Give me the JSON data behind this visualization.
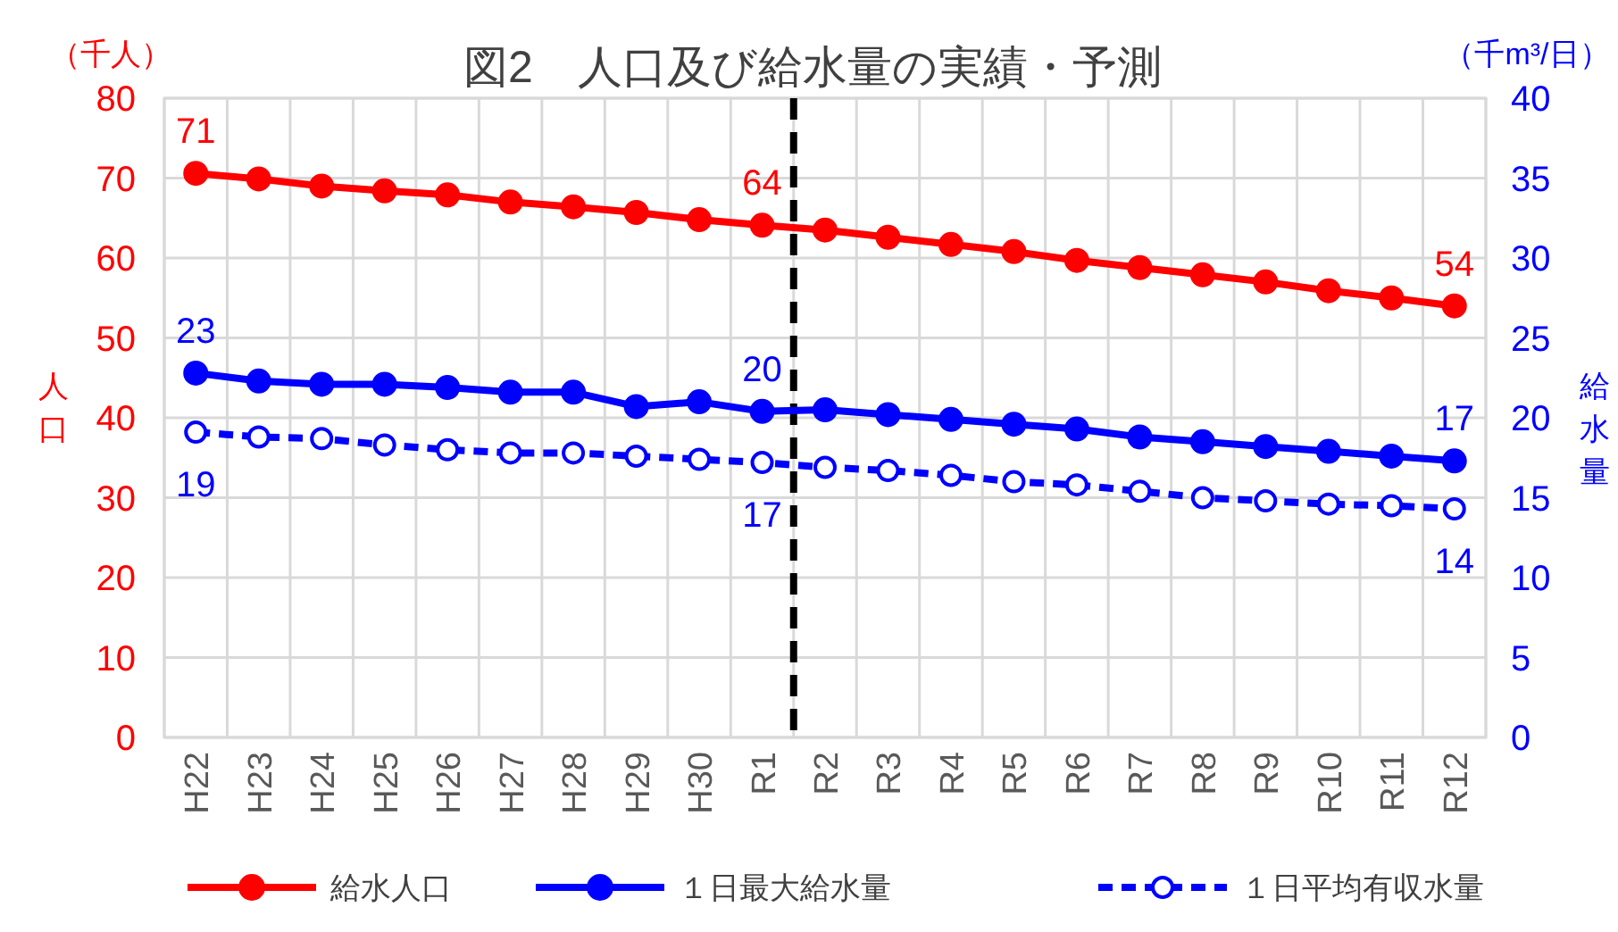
{
  "chart_data": {
    "type": "line",
    "title": "図2　人口及び給水量の実績・予測",
    "categories": [
      "H22",
      "H23",
      "H24",
      "H25",
      "H26",
      "H27",
      "H28",
      "H29",
      "H30",
      "R1",
      "R2",
      "R3",
      "R4",
      "R5",
      "R6",
      "R7",
      "R8",
      "R9",
      "R10",
      "R11",
      "R12"
    ],
    "ylabel": "人口",
    "y2label": "給水量",
    "annotations": [
      "（千人）",
      "（千m³/日）"
    ],
    "ylim": [
      0,
      80
    ],
    "yticks": [
      0,
      10,
      20,
      30,
      40,
      50,
      60,
      70,
      80
    ],
    "y2lim": [
      0,
      40
    ],
    "y2ticks": [
      0,
      5,
      10,
      15,
      20,
      25,
      30,
      35,
      40
    ],
    "grid": true,
    "legend": "bottom",
    "marker": "circle",
    "ref_lines": [
      {
        "axis": "x",
        "value": "R1",
        "color": "#000000",
        "line_style": "dashed"
      }
    ],
    "series": [
      {
        "name": "給水人口",
        "color": "#ff0000",
        "line_style": "solid",
        "values": [
          70.6,
          69.9,
          69.0,
          68.4,
          67.9,
          67.0,
          66.4,
          65.7,
          64.8,
          64.1,
          63.5,
          62.6,
          61.7,
          60.8,
          59.7,
          58.8,
          57.9,
          57.0,
          55.9,
          55.0,
          54.0
        ],
        "value_labels": [
          "71",
          null,
          null,
          null,
          null,
          null,
          null,
          null,
          null,
          "64",
          null,
          null,
          null,
          null,
          null,
          null,
          null,
          null,
          null,
          null,
          "54"
        ]
      },
      {
        "name": "１日最大給水量",
        "color": "#0000ff",
        "axis": "y2",
        "line_style": "solid",
        "values": [
          22.8,
          22.3,
          22.1,
          22.1,
          21.9,
          21.6,
          21.6,
          20.7,
          21.0,
          20.4,
          20.5,
          20.2,
          19.9,
          19.6,
          19.3,
          18.8,
          18.5,
          18.2,
          17.9,
          17.6,
          17.3
        ],
        "value_labels": [
          "23",
          null,
          null,
          null,
          null,
          null,
          null,
          null,
          null,
          "20",
          null,
          null,
          null,
          null,
          null,
          null,
          null,
          null,
          null,
          null,
          "17"
        ]
      },
      {
        "name": "１日平均有収水量",
        "color": "#0000ff",
        "axis": "y2",
        "line_style": "dashed",
        "values": [
          19.1,
          18.8,
          18.7,
          18.3,
          18.0,
          17.8,
          17.8,
          17.6,
          17.4,
          17.2,
          16.9,
          16.7,
          16.4,
          16.0,
          15.8,
          15.4,
          15.0,
          14.8,
          14.6,
          14.5,
          14.3
        ],
        "value_labels": [
          "19",
          null,
          null,
          null,
          null,
          null,
          null,
          null,
          null,
          "17",
          null,
          null,
          null,
          null,
          null,
          null,
          null,
          null,
          null,
          null,
          "14"
        ]
      }
    ]
  }
}
